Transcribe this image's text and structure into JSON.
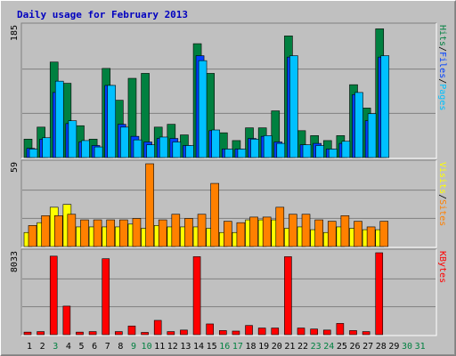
{
  "chart_data": {
    "type": "bar",
    "title": "Daily usage for February 2013",
    "colors": {
      "background": "#c0c0c0",
      "title": "#0000c0",
      "hits": "#008040",
      "files": "#0040ff",
      "pages": "#00c0ff",
      "visits": "#ffff00",
      "sites": "#ff8000",
      "kbytes": "#ff0000",
      "weekend_day": "#008040",
      "weekday": "#000000",
      "grid": "#808080"
    },
    "days": [
      "1",
      "2",
      "3",
      "4",
      "5",
      "6",
      "7",
      "8",
      "9",
      "10",
      "11",
      "12",
      "13",
      "14",
      "15",
      "16",
      "17",
      "18",
      "19",
      "20",
      "21",
      "22",
      "23",
      "24",
      "25",
      "26",
      "27",
      "28",
      "29",
      "30",
      "31"
    ],
    "weekend_days": [
      3,
      9,
      10,
      16,
      17,
      23,
      24,
      30,
      31
    ],
    "panels": [
      {
        "id": "hits-files-pages",
        "scale_max": 185,
        "scale_label": "185",
        "legend": [
          {
            "text": "Pages",
            "color": "#00c0ff"
          },
          {
            "text": "/",
            "color": "#000000"
          },
          {
            "text": "Files",
            "color": "#0040ff"
          },
          {
            "text": "/",
            "color": "#000000"
          },
          {
            "text": "Hits",
            "color": "#008040"
          }
        ],
        "series": [
          {
            "name": "Hits",
            "color": "#008040",
            "values": [
              26,
              43,
              135,
              105,
              45,
              26,
              126,
              81,
              112,
              119,
              43,
              47,
              32,
              161,
              119,
              35,
              24,
              42,
              42,
              66,
              172,
              38,
              31,
              24,
              31,
              103,
              70,
              182,
              0,
              0,
              0
            ]
          },
          {
            "name": "Files",
            "color": "#0040ff",
            "values": [
              13,
              26,
              92,
              48,
              22,
              17,
              102,
              47,
              30,
              22,
              27,
              27,
              17,
              144,
              38,
              12,
              12,
              27,
              30,
              22,
              142,
              18,
              20,
              12,
              20,
              89,
              52,
              142,
              0,
              0,
              0
            ]
          },
          {
            "name": "Pages",
            "color": "#00c0ff",
            "values": [
              12,
              28,
              108,
              52,
              24,
              15,
              102,
              43,
              25,
              18,
              29,
              22,
              17,
              137,
              39,
              12,
              12,
              26,
              31,
              20,
              144,
              18,
              17,
              12,
              23,
              92,
              62,
              144,
              0,
              0,
              0
            ]
          }
        ]
      },
      {
        "id": "visits-sites",
        "scale_max": 59,
        "scale_label": "59",
        "legend": [
          {
            "text": "Sites",
            "color": "#ff8000"
          },
          {
            "text": "/",
            "color": "#000000"
          },
          {
            "text": "Visits",
            "color": "#ffff00"
          }
        ],
        "series": [
          {
            "name": "Visits",
            "color": "#ffff00",
            "values": [
              10,
              17,
              28,
              30,
              14,
              14,
              14,
              14,
              16,
              13,
              15,
              14,
              14,
              14,
              13,
              10,
              10,
              19,
              19,
              19,
              13,
              14,
              12,
              10,
              14,
              13,
              12,
              12,
              0,
              0,
              0
            ]
          },
          {
            "name": "Sites",
            "color": "#ff8000",
            "values": [
              15,
              22,
              22,
              23,
              19,
              19,
              19,
              19,
              20,
              59,
              19,
              23,
              20,
              23,
              45,
              18,
              17,
              21,
              21,
              28,
              23,
              23,
              19,
              18,
              22,
              18,
              14,
              18,
              0,
              0,
              0
            ]
          }
        ]
      },
      {
        "id": "kbytes",
        "scale_max": 8033,
        "scale_label": "8033",
        "legend": [
          {
            "text": "KBytes",
            "color": "#ff0000"
          }
        ],
        "series": [
          {
            "name": "KBytes",
            "color": "#ff0000",
            "values": [
              250,
              300,
              7700,
              2800,
              250,
              300,
              7450,
              300,
              850,
              220,
              1400,
              300,
              450,
              7650,
              1050,
              400,
              350,
              900,
              650,
              650,
              7650,
              650,
              550,
              450,
              1100,
              400,
              300,
              8033,
              0,
              0,
              0
            ]
          }
        ]
      }
    ]
  }
}
